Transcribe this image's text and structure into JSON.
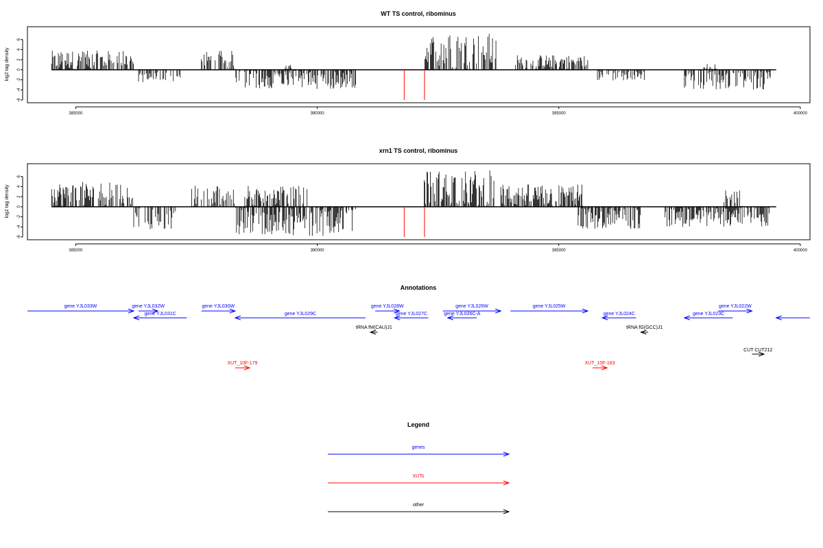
{
  "chart_data": [
    {
      "type": "bar",
      "title": "WT TS control, ribominus",
      "ylabel": "log2 tag density",
      "xlim": [
        384500,
        399500
      ],
      "ylim": [
        -6,
        8
      ],
      "x_ticks": [
        "385000",
        "390000",
        "395000",
        "400000"
      ],
      "y_ticks": [
        "-6",
        "-4",
        "-2",
        "0",
        "2",
        "4",
        "6"
      ],
      "segments": [
        {
          "start": 384500,
          "end": 386200,
          "side": "up",
          "max": 3.8
        },
        {
          "start": 386300,
          "end": 387200,
          "side": "down",
          "max": 2.5
        },
        {
          "start": 387600,
          "end": 388300,
          "side": "up",
          "max": 3.8
        },
        {
          "start": 388300,
          "end": 390800,
          "side": "down",
          "max": 3.8
        },
        {
          "start": 389300,
          "end": 389500,
          "side": "up",
          "max": 1.0
        },
        {
          "start": 392200,
          "end": 393700,
          "side": "up",
          "max": 7.3
        },
        {
          "start": 394100,
          "end": 395600,
          "side": "up",
          "max": 3.0
        },
        {
          "start": 395800,
          "end": 396800,
          "side": "down",
          "max": 2.2
        },
        {
          "start": 397600,
          "end": 399400,
          "side": "down",
          "max": 4.0
        },
        {
          "start": 398000,
          "end": 398300,
          "side": "up",
          "max": 1.2
        }
      ],
      "red_lines": [
        391800,
        392220
      ]
    },
    {
      "type": "bar",
      "title": "xrn1 TS control, ribominus",
      "ylabel": "log2 tag density",
      "xlim": [
        384500,
        399500
      ],
      "ylim": [
        -6,
        8
      ],
      "x_ticks": [
        "385000",
        "390000",
        "395000",
        "400000"
      ],
      "y_ticks": [
        "-6",
        "-4",
        "-2",
        "0",
        "2",
        "4",
        "6"
      ],
      "segments": [
        {
          "start": 384500,
          "end": 386200,
          "side": "up",
          "max": 5.0
        },
        {
          "start": 386200,
          "end": 387100,
          "side": "down",
          "max": 4.5
        },
        {
          "start": 387400,
          "end": 388300,
          "side": "up",
          "max": 4.3
        },
        {
          "start": 388300,
          "end": 390800,
          "side": "down",
          "max": 5.8
        },
        {
          "start": 388500,
          "end": 389800,
          "side": "up",
          "max": 4.2
        },
        {
          "start": 392200,
          "end": 393700,
          "side": "up",
          "max": 7.3
        },
        {
          "start": 393800,
          "end": 395500,
          "side": "up",
          "max": 4.5
        },
        {
          "start": 395400,
          "end": 396700,
          "side": "down",
          "max": 4.5
        },
        {
          "start": 397200,
          "end": 399400,
          "side": "down",
          "max": 4.0
        },
        {
          "start": 398400,
          "end": 398800,
          "side": "up",
          "max": 3.5
        }
      ],
      "red_lines": [
        391800,
        392220
      ]
    }
  ],
  "annotations": {
    "title": "Annotations",
    "items": [
      {
        "label": "gene YJL033W",
        "start": 384000,
        "end": 386200,
        "dir": "right",
        "kind": "gene",
        "row": 0
      },
      {
        "label": "gene YJL032W",
        "start": 386300,
        "end": 386700,
        "dir": "right",
        "kind": "gene",
        "row": 0
      },
      {
        "label": "gene YJL031C",
        "start": 386200,
        "end": 387300,
        "dir": "left",
        "kind": "gene",
        "row": 1
      },
      {
        "label": "gene YJL030W",
        "start": 387600,
        "end": 388300,
        "dir": "right",
        "kind": "gene",
        "row": 0
      },
      {
        "label": "gene YJL029C",
        "start": 388300,
        "end": 391000,
        "dir": "left",
        "kind": "gene",
        "row": 1
      },
      {
        "label": "gene YJL028W",
        "start": 391200,
        "end": 391700,
        "dir": "right",
        "kind": "gene",
        "row": 0
      },
      {
        "label": "gene YJL027C",
        "start": 391600,
        "end": 392300,
        "dir": "left",
        "kind": "gene",
        "row": 1
      },
      {
        "label": "gene YJL026W",
        "start": 392600,
        "end": 393800,
        "dir": "right",
        "kind": "gene",
        "row": 0
      },
      {
        "label": "gene YJL026C-A",
        "start": 392700,
        "end": 393300,
        "dir": "left",
        "kind": "gene",
        "row": 1
      },
      {
        "label": "gene YJL025W",
        "start": 394000,
        "end": 395600,
        "dir": "right",
        "kind": "gene",
        "row": 0
      },
      {
        "label": "gene YJL024C",
        "start": 395900,
        "end": 396600,
        "dir": "left",
        "kind": "gene",
        "row": 1
      },
      {
        "label": "gene YJL022W",
        "start": 398300,
        "end": 399000,
        "dir": "right",
        "kind": "gene",
        "row": 0
      },
      {
        "label": "gene YJL023C",
        "start": 397600,
        "end": 398600,
        "dir": "left",
        "kind": "gene",
        "row": 1
      },
      {
        "label": "",
        "start": 399500,
        "end": 400200,
        "dir": "left",
        "kind": "gene",
        "row": 1
      },
      {
        "label": "tRNA fM(CAU)J1",
        "start": 391100,
        "end": 391250,
        "dir": "left",
        "kind": "other",
        "row": 2
      },
      {
        "label": "tRNA fG(GCC)J1",
        "start": 396700,
        "end": 396850,
        "dir": "left",
        "kind": "other",
        "row": 2
      },
      {
        "label": "CUT CUT212",
        "start": 399000,
        "end": 399250,
        "dir": "right",
        "kind": "other",
        "row": 3
      },
      {
        "label": "XUT_10F-179",
        "start": 388300,
        "end": 388600,
        "dir": "right",
        "kind": "xut",
        "row": 4
      },
      {
        "label": "XUT_10F-183",
        "start": 395700,
        "end": 396000,
        "dir": "right",
        "kind": "xut",
        "row": 4
      }
    ]
  },
  "legend": {
    "title": "Legend",
    "items": [
      {
        "label": "genes",
        "kind": "gene"
      },
      {
        "label": "XUTs",
        "kind": "xut"
      },
      {
        "label": "other",
        "kind": "other"
      }
    ]
  },
  "colors": {
    "gene": "#0000ff",
    "xut": "#ff0000",
    "other": "#000000",
    "signal": "#000000",
    "marker": "#ff0000"
  }
}
